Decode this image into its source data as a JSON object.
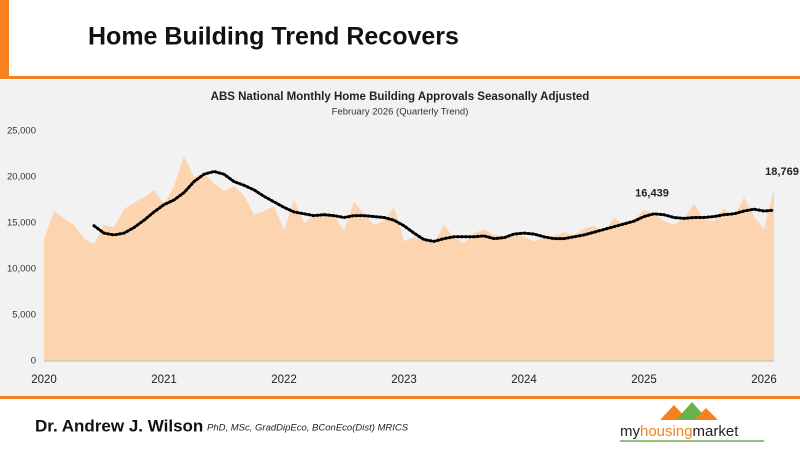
{
  "header": {
    "title": "Home Building Trend Recovers"
  },
  "chart_data": {
    "type": "area",
    "title": "ABS National Monthly Home Building Approvals Seasonally Adjusted",
    "subtitle": "February 2026 (Quarterly Trend)",
    "categories": [
      "2020",
      null,
      null,
      null,
      null,
      null,
      null,
      null,
      null,
      null,
      null,
      null,
      "2021",
      null,
      null,
      null,
      null,
      null,
      null,
      null,
      null,
      null,
      null,
      null,
      "2022",
      null,
      null,
      null,
      null,
      null,
      null,
      null,
      null,
      null,
      null,
      null,
      "2023",
      null,
      null,
      null,
      null,
      null,
      null,
      null,
      null,
      null,
      null,
      null,
      "2024",
      null,
      null,
      null,
      null,
      null,
      null,
      null,
      null,
      null,
      null,
      null,
      "2025",
      null,
      null,
      null,
      null,
      null,
      null,
      null,
      null,
      null,
      null,
      null,
      "2026",
      null
    ],
    "series": [
      {
        "style": "area",
        "color": "#fcd5b0",
        "values": [
          13300,
          16300,
          15500,
          14800,
          13300,
          12700,
          14800,
          14500,
          16500,
          17200,
          17800,
          18600,
          17000,
          19000,
          22300,
          20000,
          20400,
          19300,
          18500,
          19000,
          18000,
          15900,
          16300,
          16800,
          14300,
          17500,
          15000,
          15800,
          16200,
          15800,
          14200,
          17300,
          16000,
          14800,
          15200,
          16700,
          13000,
          13500,
          13200,
          12900,
          14800,
          13400,
          12800,
          13900,
          14300,
          13700,
          13600,
          13800,
          13500,
          13000,
          13400,
          13600,
          14000,
          13700,
          14400,
          14700,
          14000,
          15600,
          14800,
          15300,
          16439,
          16000,
          15200,
          14800,
          15500,
          17100,
          15400,
          15200,
          16600,
          15600,
          17800,
          15700,
          14300,
          18769
        ],
        "value_labels": [
          null,
          null,
          null,
          null,
          null,
          null,
          null,
          null,
          null,
          null,
          null,
          null,
          null,
          null,
          null,
          null,
          null,
          null,
          null,
          null,
          null,
          null,
          null,
          null,
          null,
          null,
          null,
          null,
          null,
          null,
          null,
          null,
          null,
          null,
          null,
          null,
          null,
          null,
          null,
          null,
          null,
          null,
          null,
          null,
          null,
          null,
          null,
          null,
          null,
          null,
          null,
          null,
          null,
          null,
          null,
          null,
          null,
          null,
          null,
          null,
          "16,439",
          null,
          null,
          null,
          null,
          null,
          null,
          null,
          null,
          null,
          null,
          null,
          null,
          "18,769"
        ]
      },
      {
        "style": "dotted",
        "color": "#000000",
        "values": [
          null,
          null,
          null,
          null,
          null,
          14700,
          13900,
          13700,
          13900,
          14500,
          15300,
          16200,
          17000,
          17500,
          18300,
          19500,
          20300,
          20600,
          20300,
          19500,
          19100,
          18600,
          17900,
          17300,
          16700,
          16200,
          16000,
          15800,
          15900,
          15800,
          15600,
          15800,
          15800,
          15700,
          15600,
          15300,
          14700,
          13900,
          13200,
          13000,
          13300,
          13500,
          13500,
          13500,
          13600,
          13300,
          13400,
          13800,
          13900,
          13800,
          13500,
          13300,
          13300,
          13500,
          13700,
          14000,
          14300,
          14600,
          14900,
          15200,
          15700,
          16000,
          15900,
          15600,
          15500,
          15600,
          15600,
          15700,
          15900,
          16000,
          16300,
          16500,
          16300,
          16400
        ]
      }
    ],
    "ylim": [
      0,
      25000
    ],
    "yticks": [
      0,
      {
        "value": 5000,
        "label": "5,000"
      },
      {
        "value": 10000,
        "label": "10,000"
      },
      {
        "value": 15000,
        "label": "15,000"
      },
      {
        "value": 20000,
        "label": "20,000"
      },
      {
        "value": 25000,
        "label": "25,000"
      }
    ],
    "grid": false
  },
  "footer": {
    "author": "Dr. Andrew J. Wilson",
    "credentials": "PhD, MSc, GradDipEco, BConEco(Dist) MRICS",
    "logo": [
      "my",
      "housing",
      "market"
    ]
  }
}
